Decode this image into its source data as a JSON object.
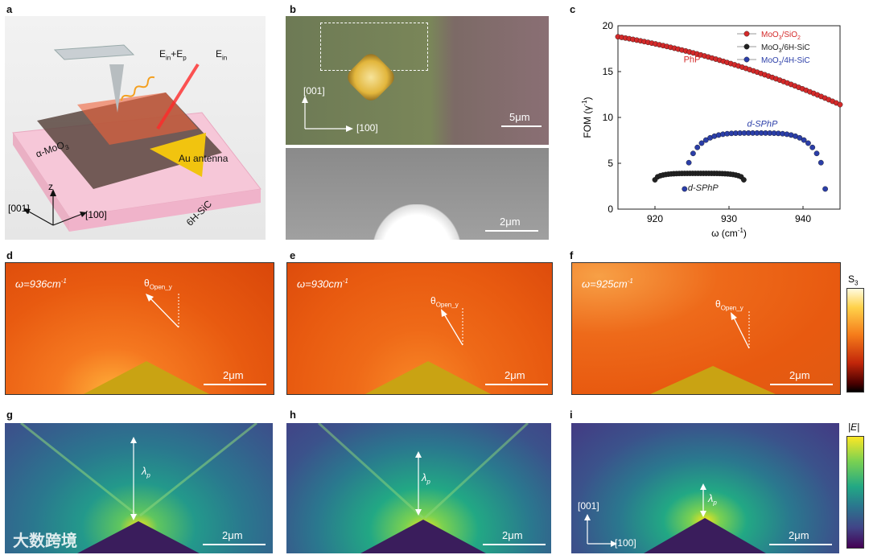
{
  "panels": {
    "a": {
      "label": "a",
      "ein_ep": "E",
      "ein_ep_sub1": "in",
      "ein_ep_plus": "+E",
      "ein_ep_sub2": "p",
      "ein": "E",
      "ein_sub": "in",
      "moo3": "α-MoO",
      "moo3_sub": "3",
      "antenna": "Au antenna",
      "substrate": "6H-SiC",
      "axis_z": "z",
      "axis_001": "[001]",
      "axis_100": "[100]"
    },
    "b": {
      "label": "b",
      "axis_001": "[001]",
      "axis_100": "[100]",
      "scale_top": "5μm",
      "scale_bottom": "2μm"
    },
    "c": {
      "label": "c"
    },
    "d": {
      "label": "d",
      "omega": "ω=936cm",
      "omega_exp": "-1",
      "theta": "θ",
      "theta_sub": "Open_y",
      "scale": "2μm"
    },
    "e": {
      "label": "e",
      "omega": "ω=930cm",
      "omega_exp": "-1",
      "theta": "θ",
      "theta_sub": "Open_y",
      "scale": "2μm"
    },
    "f": {
      "label": "f",
      "omega": "ω=925cm",
      "omega_exp": "-1",
      "theta": "θ",
      "theta_sub": "Open_y",
      "scale": "2μm"
    },
    "s3": {
      "label": "S",
      "label_sub": "3"
    },
    "g": {
      "label": "g",
      "lambda": "λ",
      "lambda_sub": "p",
      "scale": "2μm"
    },
    "h": {
      "label": "h",
      "lambda": "λ",
      "lambda_sub": "p",
      "scale": "2μm"
    },
    "i": {
      "label": "i",
      "lambda": "λ",
      "lambda_sub": "p",
      "scale": "2μm",
      "axis_001": "[001]",
      "axis_100": "[100]"
    },
    "e_bar": {
      "label": "|E|"
    }
  },
  "watermark": {
    "text": "大数跨境"
  },
  "chart_data": {
    "type": "scatter",
    "title": "",
    "xlabel": "ω (cm",
    "xlabel_exp": "-1",
    "xlabel_close": ")",
    "ylabel": "FOM (γ",
    "ylabel_exp": "-1",
    "ylabel_close": ")",
    "xlim": [
      915,
      945
    ],
    "ylim": [
      0,
      20
    ],
    "xticks": [
      920,
      930,
      940
    ],
    "yticks": [
      0,
      5,
      10,
      15,
      20
    ],
    "series": [
      {
        "name": "MoO3/SiO2",
        "legend": "MoO",
        "legend_sub1": "3",
        "legend_mid": "/SiO",
        "legend_sub2": "2",
        "color": "#d42a2a",
        "annotation": "PhP",
        "x_start": 915,
        "x_end": 945,
        "y_start": 18.8,
        "y_end": 11.4,
        "shape": "decreasing-curve"
      },
      {
        "name": "MoO3/6H-SiC",
        "legend": "MoO",
        "legend_sub1": "3",
        "legend_mid": "/6H-SiC",
        "legend_sub2": "",
        "color": "#222222",
        "annotation": "d-SPhP",
        "x_start": 920,
        "x_end": 932,
        "y_peak": 3.9,
        "y_ends": 3.2,
        "shape": "arc"
      },
      {
        "name": "MoO3/4H-SiC",
        "legend": "MoO",
        "legend_sub1": "3",
        "legend_mid": "/4H-SiC",
        "legend_sub2": "",
        "color": "#2b3ea8",
        "annotation": "d-SPhP",
        "x_start": 924,
        "x_end": 943,
        "y_peak": 8.3,
        "y_ends": 2.2,
        "shape": "arc"
      }
    ]
  },
  "colors": {
    "map_orange": "#e85a10",
    "antenna_gold": "#c9a313",
    "viridis_dark": "#3a1d5c"
  }
}
